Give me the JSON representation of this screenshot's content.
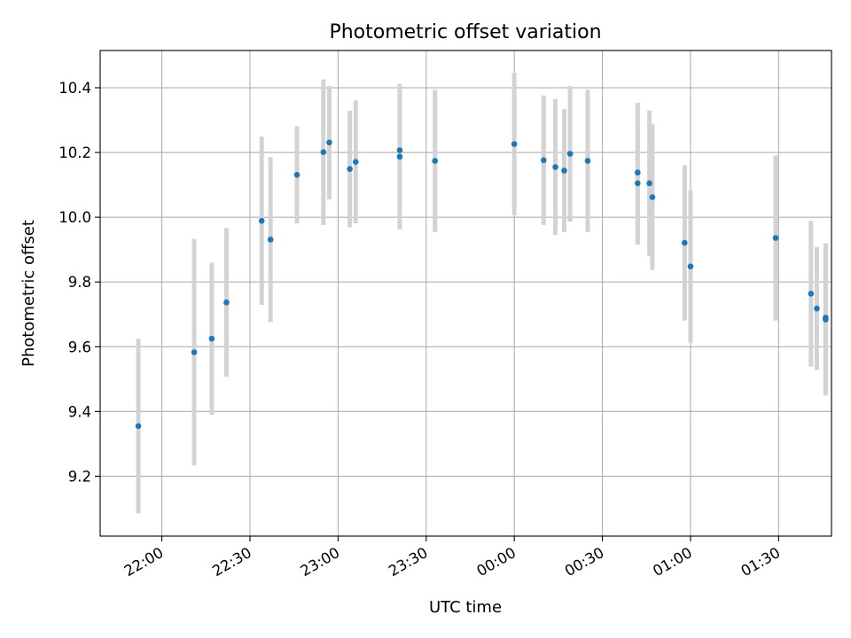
{
  "chart_data": {
    "type": "scatter",
    "title": "Photometric offset variation",
    "xlabel": "UTC time",
    "ylabel": "Photometric offset",
    "x_axis_kind": "time",
    "x_range": [
      "21:39",
      "01:48"
    ],
    "ylim": [
      9.015,
      10.515
    ],
    "x_ticks": [
      "22:00",
      "22:30",
      "23:00",
      "23:30",
      "00:00",
      "00:30",
      "01:00",
      "01:30"
    ],
    "y_ticks": [
      "9.2",
      "9.4",
      "9.6",
      "9.8",
      "10.0",
      "10.2",
      "10.4"
    ],
    "grid": true,
    "colors": {
      "points": "#1f77b4",
      "errorbars": "#d3d3d3",
      "grid": "#b0b0b0"
    },
    "series": [
      {
        "points": [
          {
            "t": "21:52",
            "y": 9.355,
            "err": 0.27
          },
          {
            "t": "22:11",
            "y": 9.583,
            "err": 0.35
          },
          {
            "t": "22:17",
            "y": 9.625,
            "err": 0.235
          },
          {
            "t": "22:22",
            "y": 9.737,
            "err": 0.23
          },
          {
            "t": "22:34",
            "y": 9.989,
            "err": 0.26
          },
          {
            "t": "22:37",
            "y": 9.931,
            "err": 0.255
          },
          {
            "t": "22:46",
            "y": 10.131,
            "err": 0.15
          },
          {
            "t": "22:55",
            "y": 10.201,
            "err": 0.225
          },
          {
            "t": "22:57",
            "y": 10.231,
            "err": 0.175
          },
          {
            "t": "23:04",
            "y": 10.149,
            "err": 0.18
          },
          {
            "t": "23:06",
            "y": 10.171,
            "err": 0.19
          },
          {
            "t": "23:21",
            "y": 10.207,
            "err": 0.2
          },
          {
            "t": "23:21",
            "y": 10.187,
            "err": 0.225
          },
          {
            "t": "23:33",
            "y": 10.174,
            "err": 0.22
          },
          {
            "t": "00:00",
            "y": 10.226,
            "err": 0.22
          },
          {
            "t": "00:10",
            "y": 10.176,
            "err": 0.2
          },
          {
            "t": "00:14",
            "y": 10.155,
            "err": 0.21
          },
          {
            "t": "00:17",
            "y": 10.144,
            "err": 0.19
          },
          {
            "t": "00:19",
            "y": 10.196,
            "err": 0.21
          },
          {
            "t": "00:25",
            "y": 10.174,
            "err": 0.22
          },
          {
            "t": "00:42",
            "y": 10.138,
            "err": 0.215
          },
          {
            "t": "00:42",
            "y": 10.105,
            "err": 0.19
          },
          {
            "t": "00:46",
            "y": 10.105,
            "err": 0.225
          },
          {
            "t": "00:47",
            "y": 10.062,
            "err": 0.225
          },
          {
            "t": "00:58",
            "y": 9.921,
            "err": 0.24
          },
          {
            "t": "01:00",
            "y": 9.848,
            "err": 0.235
          },
          {
            "t": "01:29",
            "y": 9.936,
            "err": 0.255
          },
          {
            "t": "01:41",
            "y": 9.764,
            "err": 0.225
          },
          {
            "t": "01:43",
            "y": 9.718,
            "err": 0.19
          },
          {
            "t": "01:46",
            "y": 9.684,
            "err": 0.235
          },
          {
            "t": "01:46",
            "y": 9.69,
            "err": 0.23
          }
        ]
      }
    ]
  }
}
